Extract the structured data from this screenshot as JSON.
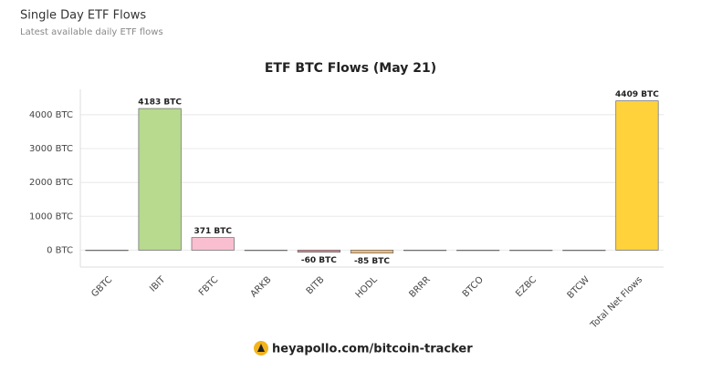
{
  "header": {
    "title": "Single Day ETF Flows",
    "subtitle": "Latest available daily ETF flows"
  },
  "chart_data": {
    "type": "bar",
    "title": "ETF BTC Flows (May 21)",
    "categories": [
      "GBTC",
      "IBIT",
      "FBTC",
      "ARKB",
      "BITB",
      "HODL",
      "BRRR",
      "BTCO",
      "EZBC",
      "BTCW",
      "Total Net Flows"
    ],
    "values": [
      0,
      4183,
      371,
      0,
      -60,
      -85,
      0,
      0,
      0,
      0,
      4409
    ],
    "value_labels": [
      null,
      "4183 BTC",
      "371 BTC",
      null,
      "-60 BTC",
      "-85 BTC",
      null,
      null,
      null,
      null,
      "4409 BTC"
    ],
    "colors": [
      "#c8c8c8",
      "#b7da8e",
      "#f9bfd0",
      "#c8c8c8",
      "#d98a90",
      "#f4bb74",
      "#c8c8c8",
      "#c8c8c8",
      "#c8c8c8",
      "#c8c8c8",
      "#ffd23c"
    ],
    "ylim": [
      -500,
      4750
    ],
    "yticks": [
      {
        "value": 0,
        "label": "0 BTC"
      },
      {
        "value": 1000,
        "label": "1000 BTC"
      },
      {
        "value": 2000,
        "label": "2000 BTC"
      },
      {
        "value": 3000,
        "label": "3000 BTC"
      },
      {
        "value": 4000,
        "label": "4000 BTC"
      }
    ],
    "grid": true
  },
  "footer": {
    "link": "heyapollo.com/bitcoin-tracker"
  }
}
